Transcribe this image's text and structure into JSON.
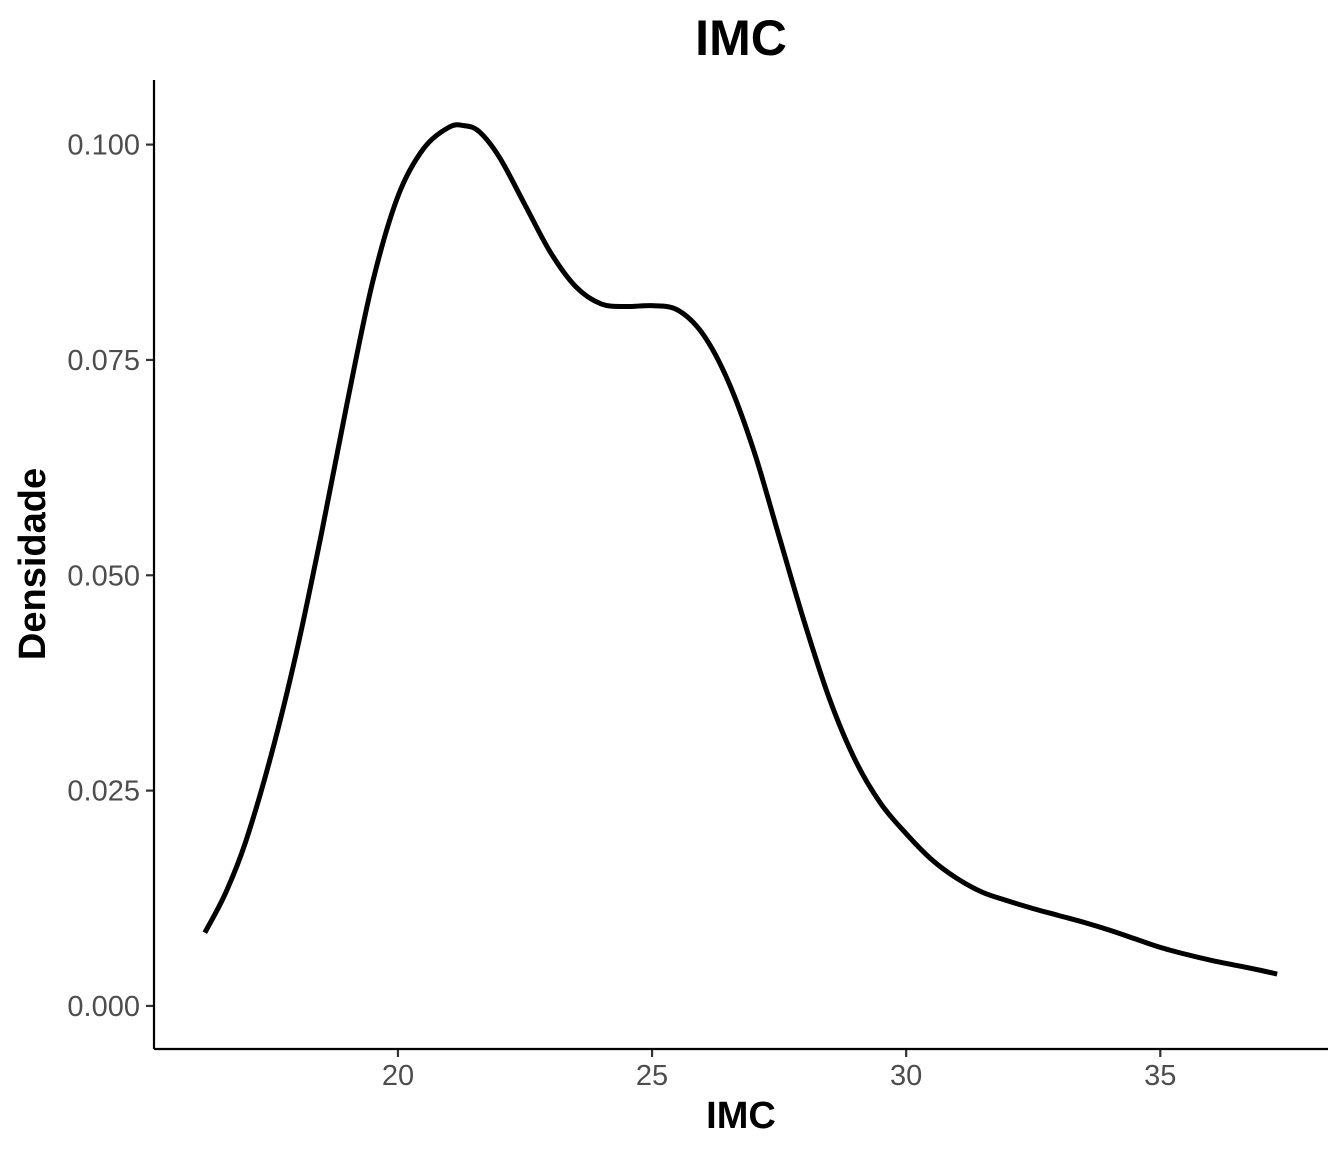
{
  "chart_data": {
    "type": "line",
    "title": "IMC",
    "xlabel": "IMC",
    "ylabel": "Densidade",
    "xlim": [
      15.2,
      38.3
    ],
    "ylim": [
      -0.005,
      0.1075
    ],
    "x_ticks": [
      20,
      25,
      30,
      35
    ],
    "x_tick_labels": [
      "20",
      "25",
      "30",
      "35"
    ],
    "y_ticks": [
      0.0,
      0.025,
      0.05,
      0.075,
      0.1
    ],
    "y_tick_labels": [
      "0.000",
      "0.025",
      "0.050",
      "0.075",
      "0.100"
    ],
    "grid": false,
    "legend": "none",
    "line_color": "#000000",
    "series": [
      {
        "x": [
          16.2,
          16.6,
          17.0,
          17.5,
          18.0,
          18.5,
          19.0,
          19.5,
          20.0,
          20.5,
          21.0,
          21.3,
          21.6,
          22.0,
          22.5,
          23.0,
          23.5,
          24.0,
          24.5,
          25.0,
          25.5,
          26.0,
          26.5,
          27.0,
          27.5,
          28.0,
          28.5,
          29.0,
          29.5,
          30.0,
          30.5,
          31.0,
          31.5,
          32.0,
          32.5,
          33.0,
          33.5,
          34.0,
          34.5,
          35.0,
          35.5,
          36.0,
          36.5,
          37.0,
          37.3
        ],
        "y": [
          0.0085,
          0.013,
          0.019,
          0.029,
          0.041,
          0.055,
          0.07,
          0.084,
          0.094,
          0.0995,
          0.102,
          0.1022,
          0.1015,
          0.0985,
          0.093,
          0.0875,
          0.0835,
          0.0815,
          0.0812,
          0.0813,
          0.0808,
          0.078,
          0.0725,
          0.0645,
          0.0545,
          0.0445,
          0.0355,
          0.0285,
          0.0235,
          0.02,
          0.017,
          0.0148,
          0.0132,
          0.0122,
          0.0113,
          0.0105,
          0.0097,
          0.0088,
          0.0078,
          0.0068,
          0.006,
          0.0053,
          0.0047,
          0.0041,
          0.0037
        ]
      }
    ]
  }
}
